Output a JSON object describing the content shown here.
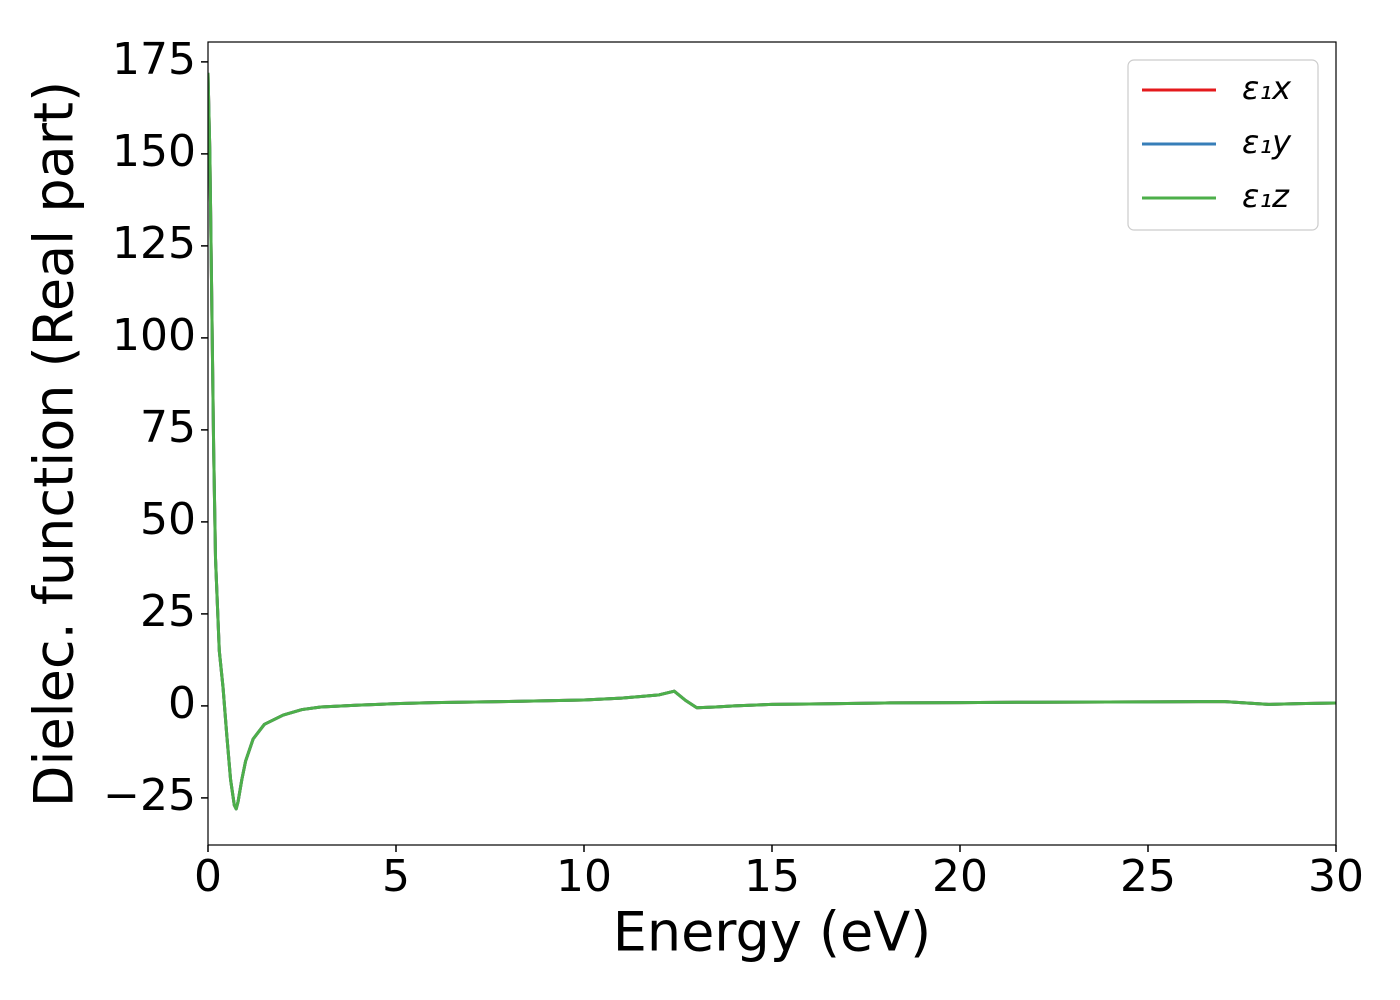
{
  "chart_data": {
    "type": "line",
    "xlabel": "Energy (eV)",
    "ylabel": "Dielec. function (Real part)",
    "x": [
      0,
      0.05,
      0.1,
      0.15,
      0.2,
      0.3,
      0.4,
      0.5,
      0.6,
      0.7,
      0.75,
      0.8,
      0.9,
      1.0,
      1.2,
      1.5,
      2,
      2.5,
      3,
      4,
      5,
      6,
      8,
      10,
      11,
      12,
      12.4,
      12.7,
      13,
      13.5,
      14,
      15,
      16,
      18,
      20,
      22,
      25,
      27,
      28.2,
      29,
      30
    ],
    "series": [
      {
        "name": "ε₁x",
        "color": "#e41a1c",
        "values": [
          172,
          150,
          110,
          70,
          40,
          15,
          5,
          -8,
          -20,
          -27,
          -28,
          -26,
          -20,
          -15,
          -9,
          -5,
          -2.5,
          -1,
          -0.3,
          0.2,
          0.6,
          0.9,
          1.2,
          1.6,
          2.1,
          3,
          4,
          1.5,
          -0.5,
          -0.3,
          0,
          0.4,
          0.5,
          0.8,
          0.9,
          1,
          1.1,
          1.2,
          0.4,
          0.6,
          0.8
        ]
      },
      {
        "name": "ε₁y",
        "color": "#377eb8",
        "values": [
          172,
          150,
          110,
          70,
          40,
          15,
          5,
          -8,
          -20,
          -27,
          -28,
          -26,
          -20,
          -15,
          -9,
          -5,
          -2.5,
          -1,
          -0.3,
          0.2,
          0.6,
          0.9,
          1.2,
          1.6,
          2.1,
          3,
          4,
          1.5,
          -0.5,
          -0.3,
          0,
          0.4,
          0.5,
          0.8,
          0.9,
          1,
          1.1,
          1.2,
          0.4,
          0.6,
          0.8
        ]
      },
      {
        "name": "ε₁z",
        "color": "#4daf4a",
        "values": [
          172,
          150,
          110,
          70,
          40,
          15,
          5,
          -8,
          -20,
          -27,
          -28,
          -26,
          -20,
          -15,
          -9,
          -5,
          -2.5,
          -1,
          -0.3,
          0.2,
          0.6,
          0.9,
          1.2,
          1.6,
          2.1,
          3,
          4,
          1.5,
          -0.5,
          -0.3,
          0,
          0.4,
          0.5,
          0.8,
          0.9,
          1,
          1.1,
          1.2,
          0.4,
          0.6,
          0.8
        ]
      }
    ],
    "xlim": [
      0,
      30
    ],
    "xticks": [
      0,
      5,
      10,
      15,
      20,
      25,
      30
    ],
    "ylim": [
      -37.8,
      180.4
    ],
    "yticks": [
      {
        "value": -25,
        "label": "−25"
      },
      0,
      25,
      50,
      75,
      100,
      125,
      150,
      175
    ],
    "legend": "upper right",
    "grid": false
  }
}
